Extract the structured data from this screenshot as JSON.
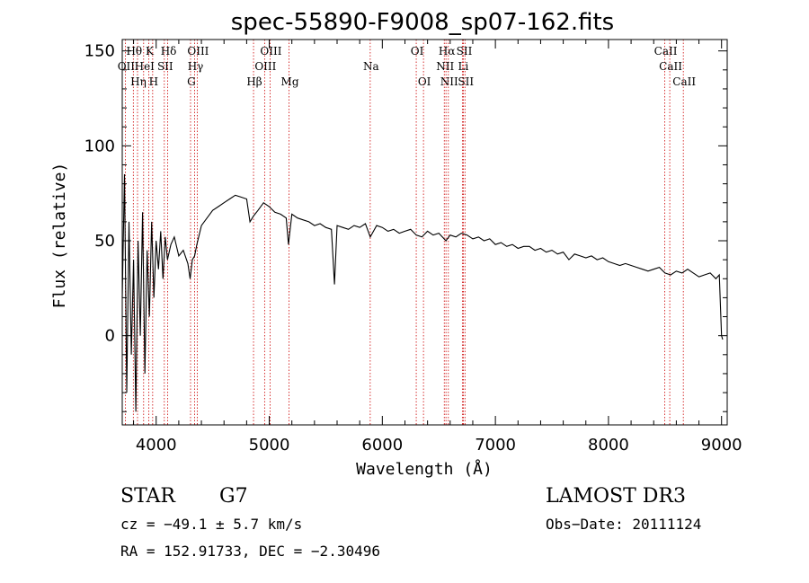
{
  "chart_data": {
    "type": "line",
    "title": "spec-55890-F9008_sp07-162.fits",
    "xlabel": "Wavelength (Å)",
    "ylabel": "Flux (relative)",
    "xlim": [
      3700,
      9050
    ],
    "ylim": [
      -47,
      156
    ],
    "x_ticks": [
      4000,
      5000,
      6000,
      7000,
      8000,
      9000
    ],
    "y_ticks": [
      0,
      50,
      100,
      150
    ],
    "series": [
      {
        "name": "spectrum",
        "x": [
          3700,
          3720,
          3740,
          3760,
          3780,
          3800,
          3820,
          3840,
          3860,
          3880,
          3900,
          3920,
          3940,
          3960,
          3980,
          4000,
          4020,
          4040,
          4060,
          4080,
          4100,
          4130,
          4160,
          4200,
          4240,
          4280,
          4300,
          4320,
          4340,
          4360,
          4400,
          4450,
          4500,
          4550,
          4600,
          4650,
          4700,
          4750,
          4800,
          4830,
          4861,
          4900,
          4950,
          5000,
          5050,
          5100,
          5150,
          5170,
          5200,
          5250,
          5300,
          5350,
          5400,
          5450,
          5500,
          5550,
          5577,
          5600,
          5650,
          5700,
          5750,
          5800,
          5850,
          5893,
          5950,
          6000,
          6050,
          6100,
          6150,
          6200,
          6250,
          6300,
          6350,
          6400,
          6450,
          6500,
          6563,
          6600,
          6650,
          6700,
          6750,
          6800,
          6850,
          6900,
          6950,
          7000,
          7050,
          7100,
          7150,
          7200,
          7250,
          7300,
          7350,
          7400,
          7450,
          7500,
          7550,
          7600,
          7650,
          7700,
          7750,
          7800,
          7850,
          7900,
          7950,
          8000,
          8050,
          8100,
          8150,
          8200,
          8250,
          8300,
          8350,
          8400,
          8450,
          8500,
          8550,
          8600,
          8650,
          8700,
          8750,
          8800,
          8850,
          8900,
          8950,
          8980,
          9000,
          9010
        ],
        "values": [
          20,
          85,
          -30,
          60,
          -10,
          40,
          -40,
          50,
          0,
          65,
          -20,
          45,
          10,
          60,
          20,
          50,
          35,
          55,
          30,
          52,
          40,
          48,
          52,
          42,
          45,
          38,
          30,
          40,
          42,
          48,
          58,
          62,
          66,
          68,
          70,
          72,
          74,
          73,
          72,
          60,
          63,
          66,
          70,
          68,
          65,
          64,
          62,
          48,
          64,
          62,
          61,
          60,
          58,
          59,
          57,
          56,
          27,
          58,
          57,
          56,
          58,
          57,
          59,
          52,
          58,
          57,
          55,
          56,
          54,
          55,
          56,
          53,
          52,
          55,
          53,
          54,
          50,
          53,
          52,
          54,
          53,
          51,
          52,
          50,
          51,
          48,
          49,
          47,
          48,
          46,
          47,
          47,
          45,
          46,
          44,
          45,
          43,
          44,
          40,
          43,
          42,
          41,
          42,
          40,
          41,
          39,
          38,
          37,
          38,
          37,
          36,
          35,
          34,
          35,
          36,
          33,
          32,
          34,
          33,
          35,
          33,
          31,
          32,
          33,
          30,
          32,
          0,
          -2
        ],
        "color": "#000000"
      }
    ],
    "spectral_lines": [
      {
        "label": "OII",
        "wave": 3727,
        "row": 2
      },
      {
        "label": "Hθ",
        "wave": 3798,
        "row": 1
      },
      {
        "label": "Hη",
        "wave": 3835,
        "row": 3
      },
      {
        "label": "HeI",
        "wave": 3889,
        "row": 2
      },
      {
        "label": "K",
        "wave": 3934,
        "row": 1
      },
      {
        "label": "SII",
        "wave": 4072,
        "row": 2
      },
      {
        "label": "H",
        "wave": 3969,
        "row": 3
      },
      {
        "label": "Hδ",
        "wave": 4102,
        "row": 1
      },
      {
        "label": "OIII",
        "wave": 4363,
        "row": 1
      },
      {
        "label": "Hγ",
        "wave": 4340,
        "row": 2
      },
      {
        "label": "G",
        "wave": 4304,
        "row": 3
      },
      {
        "label": "Hβ",
        "wave": 4861,
        "row": 3
      },
      {
        "label": "OIII",
        "wave": 5007,
        "row": 1
      },
      {
        "label": "OIII",
        "wave": 4959,
        "row": 2
      },
      {
        "label": "Mg",
        "wave": 5175,
        "row": 3
      },
      {
        "label": "Na",
        "wave": 5893,
        "row": 2
      },
      {
        "label": "OI",
        "wave": 6300,
        "row": 1
      },
      {
        "label": "OI",
        "wave": 6364,
        "row": 3
      },
      {
        "label": "Hα",
        "wave": 6563,
        "row": 1
      },
      {
        "label": "NII",
        "wave": 6548,
        "row": 2
      },
      {
        "label": "NII",
        "wave": 6584,
        "row": 3
      },
      {
        "label": "SII",
        "wave": 6717,
        "row": 1
      },
      {
        "label": "Li",
        "wave": 6708,
        "row": 2
      },
      {
        "label": "SII",
        "wave": 6731,
        "row": 3
      },
      {
        "label": "CaII",
        "wave": 8498,
        "row": 1
      },
      {
        "label": "CaII",
        "wave": 8542,
        "row": 2
      },
      {
        "label": "CaII",
        "wave": 8662,
        "row": 3
      }
    ]
  },
  "info": {
    "class": "STAR",
    "subclass": "G7",
    "velocity": "cz = −49.1 ± 5.7 km/s",
    "coords": "RA = 152.91733, DEC =  −2.30496",
    "survey": "LAMOST DR3",
    "obs_date": "Obs−Date: 20111124"
  },
  "colors": {
    "line_markers": "#cc0000",
    "spectrum": "#000000"
  }
}
